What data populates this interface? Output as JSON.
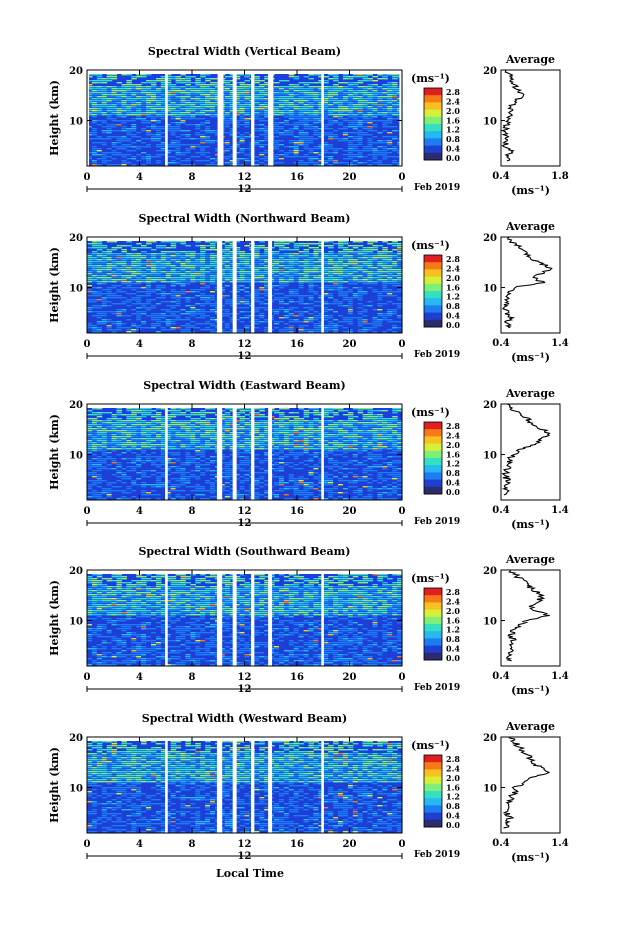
{
  "figure": {
    "x_title": "Local Time",
    "date_label": "Feb 2019",
    "day_label": "12",
    "ylabel": "Height (km)",
    "unit_label": "(ms⁻¹)",
    "avg_title": "Average",
    "colorbar_ticks": [
      "2.8",
      "2.4",
      "2.0",
      "1.6",
      "1.2",
      "0.8",
      "0.4",
      "0.0"
    ],
    "colors": {
      "panel_background": "#1a3ee0",
      "gap": "#ffffff",
      "colormap": [
        "#2b2b6e",
        "#1f3fd1",
        "#1c7cf0",
        "#25b8f2",
        "#34e0c0",
        "#7ef07a",
        "#d6f03a",
        "#f8c020",
        "#f77a18",
        "#e02020"
      ]
    }
  },
  "chart_data": [
    {
      "type": "heatmap",
      "title": "Spectral Width (Vertical Beam)",
      "xlabel": "",
      "ylabel": "Height (km)",
      "x_ticks": [
        "0",
        "4",
        "8",
        "12",
        "16",
        "20",
        "0"
      ],
      "y_ticks": [
        "20",
        "10"
      ],
      "xlim": [
        0,
        24
      ],
      "ylim": [
        1,
        20
      ],
      "colorbar": {
        "label": "(ms⁻¹)",
        "range": [
          0,
          3.0
        ],
        "ticks": [
          "2.8",
          "2.4",
          "2.0",
          "1.6",
          "1.2",
          "0.8",
          "0.4",
          "0.0"
        ]
      },
      "data_gaps_hours": [
        [
          0.0,
          0.15
        ],
        [
          5.95,
          6.15
        ],
        [
          9.95,
          10.4
        ],
        [
          11.1,
          11.4
        ],
        [
          12.5,
          12.75
        ],
        [
          13.8,
          14.2
        ],
        [
          17.85,
          18.05
        ],
        [
          23.8,
          24
        ]
      ],
      "average_profile": {
        "title": "Average",
        "xlabel": "(ms⁻¹)",
        "x_ticks": [
          "0.4",
          "1.8"
        ],
        "xlim": [
          0.4,
          1.8
        ],
        "y_ticks": [
          "20",
          "10"
        ],
        "height": [
          2,
          3,
          4,
          5,
          6,
          7,
          8,
          9,
          10,
          11,
          12,
          13,
          14,
          15,
          16,
          17,
          18,
          19,
          20
        ],
        "value": [
          0.58,
          0.55,
          0.62,
          0.52,
          0.5,
          0.51,
          0.49,
          0.52,
          0.55,
          0.62,
          0.6,
          0.68,
          0.75,
          0.88,
          0.8,
          0.72,
          0.65,
          0.6,
          0.55
        ]
      }
    },
    {
      "type": "heatmap",
      "title": "Spectral Width (Northward Beam)",
      "xlabel": "",
      "ylabel": "Height (km)",
      "x_ticks": [
        "0",
        "4",
        "8",
        "12",
        "16",
        "20",
        "0"
      ],
      "y_ticks": [
        "20",
        "10"
      ],
      "xlim": [
        0,
        24
      ],
      "ylim": [
        1,
        20
      ],
      "colorbar": {
        "label": "(ms⁻¹)",
        "range": [
          0,
          3.0
        ],
        "ticks": [
          "2.8",
          "2.4",
          "2.0",
          "1.6",
          "1.2",
          "0.8",
          "0.4",
          "0.0"
        ]
      },
      "data_gaps_hours": [
        [
          9.9,
          10.3
        ],
        [
          11.1,
          11.4
        ],
        [
          12.5,
          12.75
        ],
        [
          13.8,
          14.1
        ],
        [
          17.85,
          18.05
        ]
      ],
      "average_profile": {
        "title": "Average",
        "xlabel": "(ms⁻¹)",
        "x_ticks": [
          "0.4",
          "1.4"
        ],
        "xlim": [
          0.4,
          1.4
        ],
        "y_ticks": [
          "20",
          "10"
        ],
        "height": [
          2,
          3,
          4,
          5,
          6,
          7,
          8,
          9,
          10,
          11,
          12,
          13,
          14,
          15,
          16,
          17,
          18,
          19,
          20
        ],
        "value": [
          0.52,
          0.5,
          0.55,
          0.5,
          0.48,
          0.52,
          0.5,
          0.55,
          0.62,
          1.12,
          0.95,
          1.15,
          1.22,
          1.05,
          0.9,
          0.8,
          0.7,
          0.6,
          0.5
        ]
      }
    },
    {
      "type": "heatmap",
      "title": "Spectral Width (Eastward Beam)",
      "xlabel": "",
      "ylabel": "Height (km)",
      "x_ticks": [
        "0",
        "4",
        "8",
        "12",
        "16",
        "20",
        "0"
      ],
      "y_ticks": [
        "20",
        "10"
      ],
      "xlim": [
        0,
        24
      ],
      "ylim": [
        1,
        20
      ],
      "colorbar": {
        "label": "(ms⁻¹)",
        "range": [
          0,
          3.0
        ],
        "ticks": [
          "2.8",
          "2.4",
          "2.0",
          "1.6",
          "1.2",
          "0.8",
          "0.4",
          "0.0"
        ]
      },
      "data_gaps_hours": [
        [
          5.95,
          6.15
        ],
        [
          9.9,
          10.3
        ],
        [
          11.1,
          11.4
        ],
        [
          12.5,
          12.75
        ],
        [
          13.8,
          14.1
        ],
        [
          17.85,
          18.05
        ]
      ],
      "average_profile": {
        "title": "Average",
        "xlabel": "(ms⁻¹)",
        "x_ticks": [
          "0.4",
          "1.4"
        ],
        "xlim": [
          0.4,
          1.4
        ],
        "y_ticks": [
          "20",
          "10"
        ],
        "height": [
          2,
          3,
          4,
          5,
          6,
          7,
          8,
          9,
          10,
          11,
          12,
          13,
          14,
          15,
          16,
          17,
          18,
          19,
          20
        ],
        "value": [
          0.5,
          0.48,
          0.52,
          0.5,
          0.47,
          0.5,
          0.52,
          0.55,
          0.6,
          0.72,
          0.95,
          1.1,
          1.2,
          1.1,
          0.95,
          0.85,
          0.7,
          0.6,
          0.52
        ]
      }
    },
    {
      "type": "heatmap",
      "title": "Spectral Width (Southward Beam)",
      "xlabel": "",
      "ylabel": "Height (km)",
      "x_ticks": [
        "0",
        "4",
        "8",
        "12",
        "16",
        "20",
        "0"
      ],
      "y_ticks": [
        "20",
        "10"
      ],
      "xlim": [
        0,
        24
      ],
      "ylim": [
        1,
        20
      ],
      "colorbar": {
        "label": "(ms⁻¹)",
        "range": [
          0,
          3.0
        ],
        "ticks": [
          "2.8",
          "2.4",
          "2.0",
          "1.6",
          "1.2",
          "0.8",
          "0.4",
          "0.0"
        ]
      },
      "data_gaps_hours": [
        [
          5.95,
          6.15
        ],
        [
          9.9,
          10.3
        ],
        [
          11.1,
          11.4
        ],
        [
          12.5,
          12.75
        ],
        [
          13.8,
          14.1
        ],
        [
          17.85,
          18.05
        ]
      ],
      "average_profile": {
        "title": "Average",
        "xlabel": "(ms⁻¹)",
        "x_ticks": [
          "0.4",
          "1.4"
        ],
        "xlim": [
          0.4,
          1.4
        ],
        "y_ticks": [
          "20",
          "10"
        ],
        "height": [
          2,
          3,
          4,
          5,
          6,
          7,
          8,
          9,
          10,
          11,
          12,
          13,
          14,
          15,
          16,
          17,
          18,
          19,
          20
        ],
        "value": [
          0.55,
          0.52,
          0.58,
          0.55,
          0.6,
          0.58,
          0.62,
          0.7,
          0.82,
          1.22,
          1.0,
          0.9,
          1.05,
          1.1,
          0.95,
          0.85,
          0.75,
          0.65,
          0.55
        ]
      }
    },
    {
      "type": "heatmap",
      "title": "Spectral Width (Westward Beam)",
      "xlabel": "Local Time",
      "ylabel": "Height (km)",
      "x_ticks": [
        "0",
        "4",
        "8",
        "12",
        "16",
        "20",
        "0"
      ],
      "y_ticks": [
        "20",
        "10"
      ],
      "xlim": [
        0,
        24
      ],
      "ylim": [
        1,
        20
      ],
      "colorbar": {
        "label": "(ms⁻¹)",
        "range": [
          0,
          3.0
        ],
        "ticks": [
          "2.8",
          "2.4",
          "2.0",
          "1.6",
          "1.2",
          "0.8",
          "0.4",
          "0.0"
        ]
      },
      "data_gaps_hours": [
        [
          5.95,
          6.15
        ],
        [
          9.9,
          10.3
        ],
        [
          11.1,
          11.4
        ],
        [
          12.5,
          12.75
        ],
        [
          13.8,
          14.1
        ],
        [
          17.85,
          18.05
        ]
      ],
      "average_profile": {
        "title": "Average",
        "xlabel": "(ms⁻¹)",
        "x_ticks": [
          "0.4",
          "1.4"
        ],
        "xlim": [
          0.4,
          1.4
        ],
        "y_ticks": [
          "20",
          "10"
        ],
        "height": [
          2,
          3,
          4,
          5,
          6,
          7,
          8,
          9,
          10,
          11,
          12,
          13,
          14,
          15,
          16,
          17,
          18,
          19,
          20
        ],
        "value": [
          0.5,
          0.52,
          0.55,
          0.5,
          0.55,
          0.52,
          0.58,
          0.62,
          0.65,
          0.78,
          0.92,
          1.2,
          1.05,
          0.95,
          0.88,
          0.8,
          0.72,
          0.62,
          0.55
        ]
      }
    }
  ]
}
